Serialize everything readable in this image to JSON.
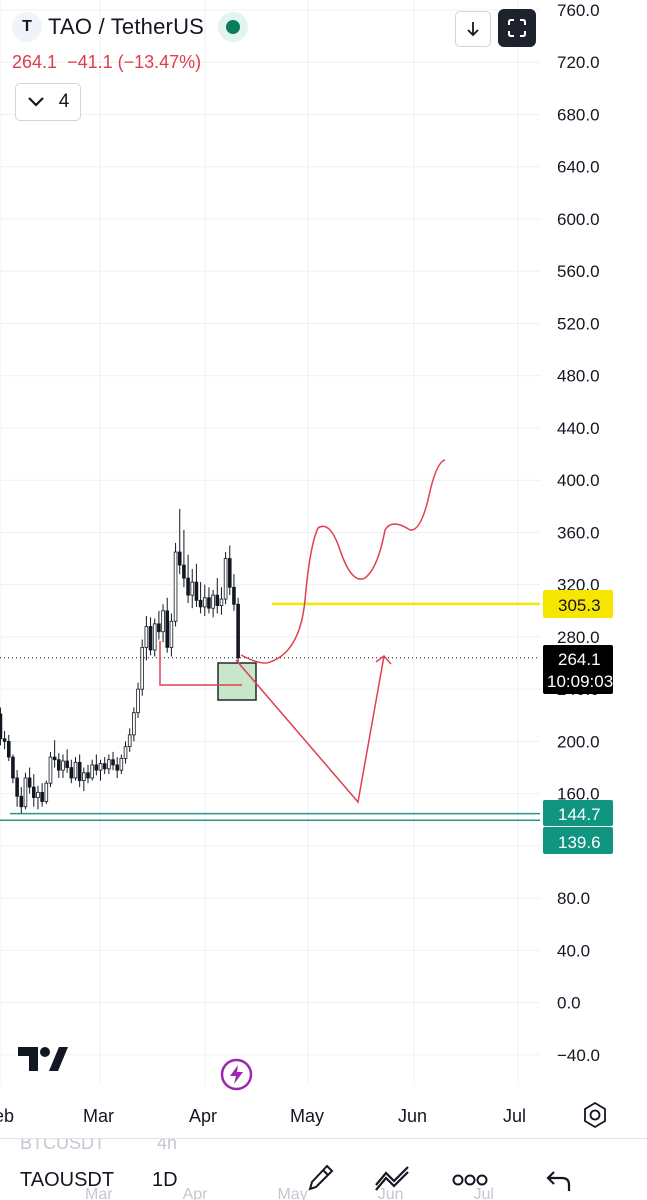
{
  "header": {
    "symbol_initial": "T",
    "symbol": "TAO / TetherUS",
    "price": "264.1",
    "change": "−41.1 (−13.47%)",
    "indicators_count": "4"
  },
  "colors": {
    "up": "#089981",
    "down": "#f23645",
    "drawing_red": "#e04050",
    "support_line": "#2a9485",
    "yellow_line": "#f7e600",
    "zone_fill": "#c8e6c9"
  },
  "y_axis": {
    "ticks": [
      "760.0",
      "720.0",
      "680.0",
      "640.0",
      "600.0",
      "560.0",
      "520.0",
      "480.0",
      "440.0",
      "400.0",
      "360.0",
      "320.0",
      "280.0",
      "240.0",
      "200.0",
      "160.0",
      "80.0",
      "40.0",
      "0.0",
      "−40.0"
    ]
  },
  "x_axis": {
    "ticks": [
      "eb",
      "Mar",
      "Apr",
      "May",
      "Jun",
      "Jul"
    ]
  },
  "price_labels": {
    "current_price": "264.1",
    "countdown": "10:09:03",
    "yellow_level": "305.3",
    "support_upper": "144.7",
    "support_lower": "139.6"
  },
  "bottom_bar": {
    "symbol": "TAOUSDT",
    "interval": "1D",
    "ghost_symbol": "BTCUSDT",
    "ghost_interval": "4h",
    "ghost_months": [
      "Mar",
      "Apr",
      "May",
      "Jun",
      "Jul"
    ]
  },
  "icons": {
    "download": "download-icon",
    "fullscreen": "fullscreen-icon",
    "chevron": "chevron-down-icon",
    "logo": "tradingview-logo",
    "flash": "flash-icon",
    "settings": "gear-icon",
    "brush": "brush-icon",
    "drawing": "drawing-tools-icon",
    "more": "more-icon",
    "undo": "undo-icon"
  },
  "chart_data": {
    "type": "candlestick",
    "ohlc": [
      [
        -1,
        221,
        226,
        197,
        202
      ],
      [
        0,
        202,
        208,
        194,
        200
      ],
      [
        1,
        200,
        205,
        185,
        188
      ],
      [
        2,
        188,
        190,
        168,
        172
      ],
      [
        3,
        172,
        178,
        150,
        158
      ],
      [
        4,
        158,
        165,
        145,
        150
      ],
      [
        5,
        150,
        176,
        148,
        172
      ],
      [
        6,
        172,
        180,
        160,
        165
      ],
      [
        7,
        165,
        175,
        150,
        157
      ],
      [
        8,
        157,
        166,
        148,
        161
      ],
      [
        9,
        161,
        168,
        150,
        154
      ],
      [
        10,
        154,
        170,
        152,
        168
      ],
      [
        11,
        168,
        192,
        165,
        188
      ],
      [
        12,
        188,
        201,
        180,
        186
      ],
      [
        13,
        186,
        191,
        172,
        178
      ],
      [
        14,
        178,
        190,
        172,
        185
      ],
      [
        15,
        185,
        194,
        176,
        180
      ],
      [
        16,
        180,
        186,
        168,
        172
      ],
      [
        17,
        172,
        188,
        170,
        184
      ],
      [
        18,
        184,
        190,
        165,
        170
      ],
      [
        19,
        170,
        180,
        162,
        176
      ],
      [
        20,
        176,
        182,
        168,
        172
      ],
      [
        21,
        172,
        186,
        170,
        182
      ],
      [
        22,
        182,
        190,
        174,
        178
      ],
      [
        23,
        178,
        186,
        170,
        183
      ],
      [
        24,
        183,
        188,
        175,
        179
      ],
      [
        25,
        179,
        190,
        175,
        186
      ],
      [
        26,
        186,
        192,
        178,
        182
      ],
      [
        27,
        182,
        188,
        172,
        178
      ],
      [
        28,
        178,
        190,
        175,
        187
      ],
      [
        29,
        187,
        200,
        183,
        196
      ],
      [
        30,
        196,
        210,
        192,
        205
      ],
      [
        31,
        205,
        226,
        200,
        222
      ],
      [
        32,
        222,
        245,
        218,
        240
      ],
      [
        33,
        240,
        278,
        235,
        272
      ],
      [
        34,
        272,
        296,
        262,
        288
      ],
      [
        35,
        288,
        295,
        266,
        270
      ],
      [
        36,
        270,
        294,
        265,
        290
      ],
      [
        37,
        290,
        300,
        278,
        284
      ],
      [
        38,
        284,
        305,
        276,
        300
      ],
      [
        39,
        300,
        310,
        268,
        272
      ],
      [
        40,
        272,
        298,
        265,
        292
      ],
      [
        41,
        292,
        352,
        288,
        345
      ],
      [
        42,
        345,
        378,
        328,
        335
      ],
      [
        43,
        335,
        362,
        318,
        325
      ],
      [
        44,
        325,
        343,
        306,
        312
      ],
      [
        45,
        312,
        332,
        302,
        322
      ],
      [
        46,
        322,
        336,
        303,
        308
      ],
      [
        47,
        308,
        322,
        298,
        303
      ],
      [
        48,
        303,
        320,
        296,
        310
      ],
      [
        49,
        310,
        318,
        298,
        302
      ],
      [
        50,
        302,
        316,
        295,
        312
      ],
      [
        51,
        312,
        325,
        298,
        304
      ],
      [
        52,
        304,
        318,
        297,
        309
      ],
      [
        53,
        309,
        345,
        305,
        340
      ],
      [
        54,
        340,
        350,
        312,
        318
      ],
      [
        55,
        318,
        328,
        300,
        305
      ],
      [
        56,
        305,
        310,
        252,
        264
      ]
    ],
    "horizontal_lines": [
      305.3,
      144.7,
      139.6
    ],
    "last_price": 264.1,
    "y_range": [
      -40,
      760
    ]
  }
}
